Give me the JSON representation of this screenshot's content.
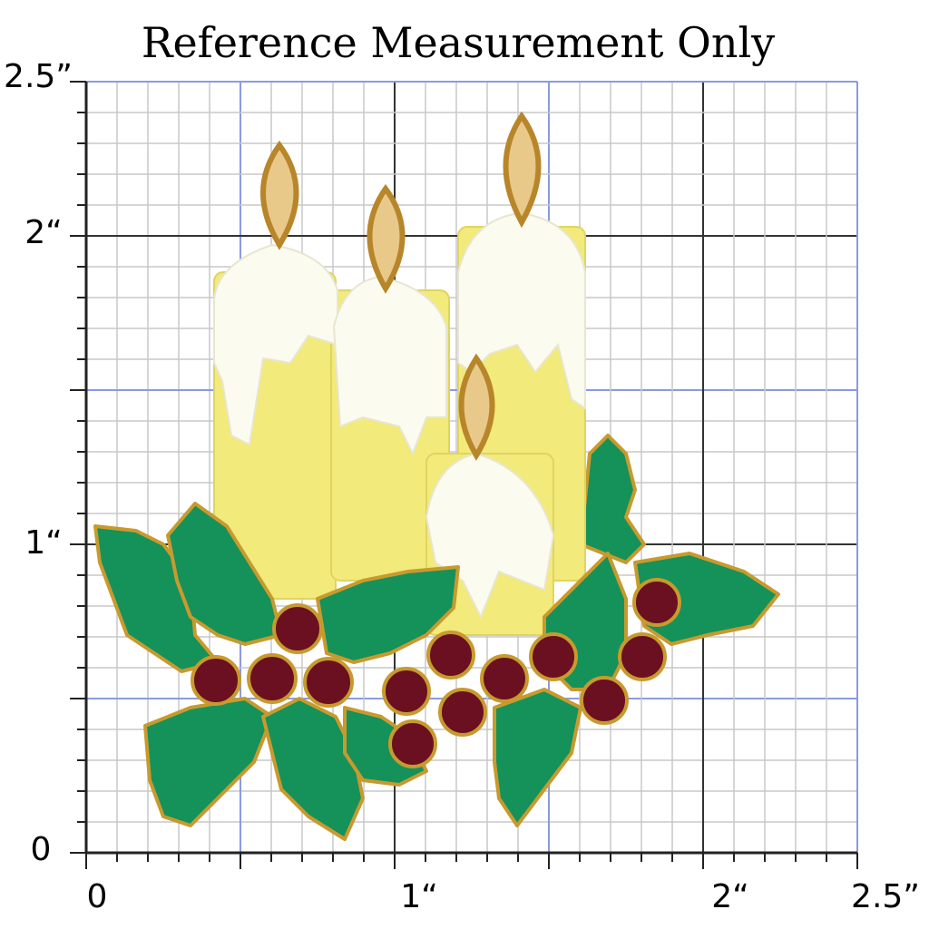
{
  "title": "Reference Measurement Only",
  "y_axis_labels": [
    "2.5”",
    "2“",
    "1“",
    "0"
  ],
  "x_axis_labels": [
    "0",
    "1“",
    "2“",
    "2.5”"
  ]
}
